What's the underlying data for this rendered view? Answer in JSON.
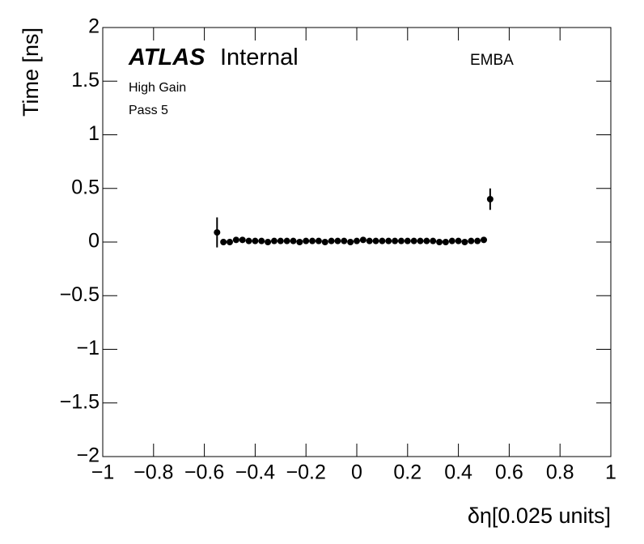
{
  "chart_data": {
    "type": "scatter",
    "title_bold": "ATLAS",
    "title_rest": "Internal",
    "label": "EMBA",
    "annotations": [
      "High Gain",
      "Pass 5"
    ],
    "xlabel": "δη[0.025 units]",
    "ylabel": "Time [ns]",
    "color": "#000000",
    "x": [
      -0.55,
      -0.525,
      -0.5,
      -0.475,
      -0.45,
      -0.425,
      -0.4,
      -0.375,
      -0.35,
      -0.325,
      -0.3,
      -0.275,
      -0.25,
      -0.225,
      -0.2,
      -0.175,
      -0.15,
      -0.125,
      -0.1,
      -0.075,
      -0.05,
      -0.025,
      0,
      0.025,
      0.05,
      0.075,
      0.1,
      0.125,
      0.15,
      0.175,
      0.2,
      0.225,
      0.25,
      0.275,
      0.3,
      0.325,
      0.35,
      0.375,
      0.4,
      0.425,
      0.45,
      0.475,
      0.5,
      0.525
    ],
    "values": [
      0.09,
      0,
      0,
      0.02,
      0.02,
      0.01,
      0.01,
      0.01,
      0,
      0.01,
      0.01,
      0.01,
      0.01,
      0,
      0.01,
      0.01,
      0.01,
      0,
      0.01,
      0.01,
      0.01,
      0,
      0.01,
      0.02,
      0.01,
      0.01,
      0.01,
      0.01,
      0.01,
      0.01,
      0.01,
      0.01,
      0.01,
      0.01,
      0.01,
      0,
      0,
      0.01,
      0.01,
      0,
      0.01,
      0.01,
      0.02,
      0.4
    ],
    "errors": [
      0.14,
      0.03,
      0.03,
      0.02,
      0.01,
      0.01,
      0.01,
      0.01,
      0.01,
      0.01,
      0.01,
      0.01,
      0.01,
      0.01,
      0.01,
      0.01,
      0.01,
      0.01,
      0.01,
      0.01,
      0.01,
      0.01,
      0.01,
      0.01,
      0.01,
      0.01,
      0.01,
      0.01,
      0.01,
      0.01,
      0.01,
      0.01,
      0.01,
      0.01,
      0.01,
      0.01,
      0.01,
      0.01,
      0.01,
      0.01,
      0.01,
      0.01,
      0.01,
      0.1
    ],
    "xlim": [
      -1,
      1
    ],
    "xticks": [
      {
        "value": -1,
        "label": "−1"
      },
      {
        "value": -0.8,
        "label": "−0.8"
      },
      {
        "value": -0.6,
        "label": "−0.6"
      },
      {
        "value": -0.4,
        "label": "−0.4"
      },
      {
        "value": -0.2,
        "label": "−0.2"
      },
      0,
      0.2,
      0.4,
      0.6,
      0.8,
      1
    ],
    "ylim": [
      -2,
      2
    ],
    "yticks": [
      {
        "value": -2,
        "label": "−2"
      },
      {
        "value": -1.5,
        "label": "−1.5"
      },
      {
        "value": -1,
        "label": "−1"
      },
      {
        "value": -0.5,
        "label": "−0.5"
      },
      0,
      0.5,
      1,
      1.5,
      2
    ]
  }
}
